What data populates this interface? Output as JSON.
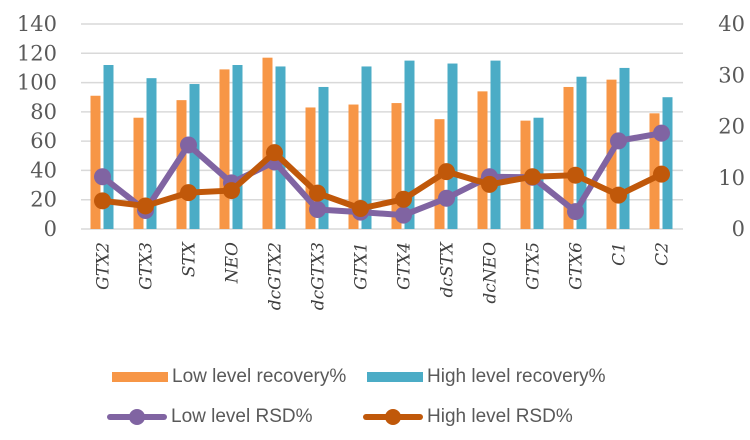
{
  "chart_data": {
    "type": "bar",
    "title": "",
    "xlabel": "",
    "ylabel": "",
    "y2label": "",
    "categories": [
      "GTX2",
      "GTX3",
      "STX",
      "NEO",
      "dcGTX2",
      "dcGTX3",
      "GTX1",
      "GTX4",
      "dcSTX",
      "dcNEO",
      "GTX5",
      "GTX6",
      "C1",
      "C2"
    ],
    "ylim": [
      0,
      140
    ],
    "yticks": [
      0,
      20,
      40,
      60,
      80,
      100,
      120,
      140
    ],
    "y2lim": [
      0,
      40
    ],
    "y2ticks": [
      0,
      10,
      20,
      30,
      40
    ],
    "grid": true,
    "legend_position": "bottom",
    "series": [
      {
        "name": "Low level recovery%",
        "type": "bar",
        "axis": "left",
        "color": "#F79646",
        "values": [
          91,
          76,
          88,
          109,
          117,
          83,
          85,
          86,
          75,
          94,
          74,
          97,
          102,
          79
        ]
      },
      {
        "name": "High level recovery%",
        "type": "bar",
        "axis": "left",
        "color": "#4BACC6",
        "values": [
          112,
          103,
          99,
          112,
          111,
          97,
          111,
          115,
          113,
          115,
          76,
          104,
          110,
          90
        ]
      },
      {
        "name": "Low level RSD%",
        "type": "line",
        "axis": "right",
        "color": "#8064A2",
        "values": [
          10.2,
          3.6,
          16.4,
          9.0,
          13.1,
          3.8,
          3.3,
          2.7,
          6.0,
          10.2,
          10.1,
          3.4,
          17.2,
          18.7
        ]
      },
      {
        "name": "High level RSD%",
        "type": "line",
        "axis": "right",
        "color": "#C0580A",
        "values": [
          5.5,
          4.5,
          7.1,
          7.5,
          14.9,
          7.0,
          4.0,
          5.8,
          11.2,
          8.7,
          10.2,
          10.5,
          6.6,
          10.7
        ]
      }
    ]
  }
}
